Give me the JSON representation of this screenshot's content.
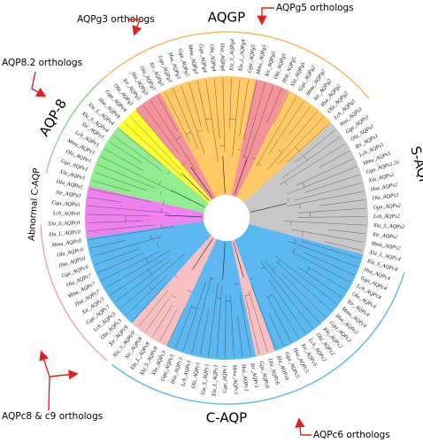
{
  "colors": {
    "aqgp": "#FFC966",
    "aqpg_orthologs": "#F4919A",
    "saqp": "#C8C8C8",
    "aqp8": "#90EE90",
    "yellow": "#FFFF33",
    "abnormal": "#EE82EE",
    "caqp": "#5CB8F0",
    "caqp_pink": "#F8C0C0",
    "ring_orange": "#F5B45A",
    "ring_blue": "#5CB8F0",
    "ring_green": "#8FD88F",
    "ring_pink": "#F0A0C8",
    "arrow": "#E02020"
  },
  "groups": [
    {
      "id": "aqgp",
      "label": "AQGP",
      "mid_angle": 0,
      "dist": 226
    },
    {
      "id": "saqp",
      "label": "S-AQP",
      "mid_angle": 75,
      "dist": 226
    },
    {
      "id": "caqp",
      "label": "C-AQP",
      "mid_angle": 180,
      "dist": 226
    },
    {
      "id": "abnormal",
      "label": "Abnormal C-AQP",
      "mid_angle": 274,
      "dist": 218
    },
    {
      "id": "aqp8",
      "label": "AQP-8",
      "mid_angle": 300,
      "dist": 226
    }
  ],
  "annotations": [
    {
      "id": "aqpg3",
      "text": "AQPg3 orthologs"
    },
    {
      "id": "aqpg5",
      "text": "AQPg5 orthologs"
    },
    {
      "id": "aqp82",
      "text": "AQP8.2 orthologs"
    },
    {
      "id": "aqpc89",
      "text": "AQPc8 & c9 orthologs"
    },
    {
      "id": "aqpc6",
      "text": "AQPc6 orthologs"
    }
  ],
  "tree_data": {
    "clades": [
      {
        "name": "AQGP",
        "color_key": "aqgp",
        "start": -55,
        "end": 48
      },
      {
        "name": "AQPg3 orthologs",
        "color_key": "aqpg_orthologs",
        "start": -42,
        "end": -28
      },
      {
        "name": "AQPg5 orthologs",
        "color_key": "aqpg_orthologs",
        "start": 12,
        "end": 26
      },
      {
        "name": "S-AQP",
        "color_key": "saqp",
        "start": 48,
        "end": 105
      },
      {
        "name": "C-AQP",
        "color_key": "caqp",
        "start": 105,
        "end": 262
      },
      {
        "name": "AQPc6 orthologs",
        "color_key": "caqp_pink",
        "start": 160,
        "end": 168
      },
      {
        "name": "AQPc8 & c9 orthologs",
        "color_key": "caqp_pink",
        "start": 205,
        "end": 222
      },
      {
        "name": "Abnormal C-AQP",
        "color_key": "abnormal",
        "start": 262,
        "end": 283
      },
      {
        "name": "AQP-8",
        "color_key": "aqp8",
        "start": 283,
        "end": 310
      },
      {
        "name": "",
        "color_key": "yellow",
        "start": 310,
        "end": 320
      }
    ],
    "leaves": [
      {
        "label": "Xla_S_AQPe4",
        "angle": 306
      },
      {
        "label": "Xla_L_AQPe4",
        "angle": 309.5
      },
      {
        "label": "Hsa_AQPe4",
        "angle": 313
      },
      {
        "label": "Gga_AQPe4",
        "angle": 316.5
      },
      {
        "label": "Ola_AQPg1",
        "angle": 320
      },
      {
        "label": "Xtr_AQPg3",
        "angle": 323.5
      },
      {
        "label": "Xla_AQPg3",
        "angle": 327
      },
      {
        "label": "Ola_AQPg3",
        "angle": 330.5
      },
      {
        "label": "Xtr_AQPg3",
        "angle": 334
      },
      {
        "label": "Gga_AQPg3",
        "angle": 337.5
      },
      {
        "label": "Hsa_AQPg3",
        "angle": 341
      },
      {
        "label": "Gga_AQPg3",
        "angle": 344.5
      },
      {
        "label": "Mmu_AQPg3",
        "angle": 348
      },
      {
        "label": "Gga_AQPg4",
        "angle": 351.5
      },
      {
        "label": "Ola_AQPg4",
        "angle": 355
      },
      {
        "label": "Hsa_AQPg4",
        "angle": 358.5
      },
      {
        "label": "Xla_S_AQPg4",
        "angle": 2
      },
      {
        "label": "Xla_L_AQPg4",
        "angle": 5.5
      },
      {
        "label": "Gga_AQPg5",
        "angle": 9
      },
      {
        "label": "Mmu_AQPg5",
        "angle": 12.5
      },
      {
        "label": "Xtr_AQPg5",
        "angle": 16
      },
      {
        "label": "Ola_AQPg5",
        "angle": 19.5
      },
      {
        "label": "Hsa_AQPg5",
        "angle": 23
      },
      {
        "label": "Xla_AQPg5",
        "angle": 26.5
      },
      {
        "label": "Gga_AQPg2",
        "angle": 30
      },
      {
        "label": "Mmu_AQPg2",
        "angle": 33.5
      },
      {
        "label": "Xtr_AQPg2",
        "angle": 37
      },
      {
        "label": "Hsa_AQPg2",
        "angle": 40.5
      },
      {
        "label": "Ola_AQPg2",
        "angle": 44
      },
      {
        "label": "Lch_AQPg1",
        "angle": 47.5
      },
      {
        "label": "Hsa_AQPs1",
        "angle": 51
      },
      {
        "label": "Gga_AQPs1",
        "angle": 54.5
      },
      {
        "label": "Ola_AQPs1",
        "angle": 58
      },
      {
        "label": "Xtr_AQPs1",
        "angle": 61.5
      },
      {
        "label": "Lch_AQPs1",
        "angle": 65
      },
      {
        "label": "Mmu_AQPs1",
        "angle": 68.5
      },
      {
        "label": "Gga_AQPs1.2a",
        "angle": 72
      },
      {
        "label": "Xla_AQPs2",
        "angle": 75.5
      },
      {
        "label": "Hsa_AQPs2",
        "angle": 79
      },
      {
        "label": "Ola_AQPs2",
        "angle": 82.5
      },
      {
        "label": "Gga_AQPs2",
        "angle": 86
      },
      {
        "label": "Lch_AQPs2",
        "angle": 89.5
      },
      {
        "label": "Xla_S_AQPs2",
        "angle": 93
      },
      {
        "label": "Xtr_AQPs2",
        "angle": 96.5
      },
      {
        "label": "Mmu_AQPs2",
        "angle": 100
      },
      {
        "label": "Xla_L_AQPc4",
        "angle": 103.5
      },
      {
        "label": "Xla_S_AQPc4",
        "angle": 107
      },
      {
        "label": "Hsa_AQPc4",
        "angle": 110.5
      },
      {
        "label": "Gga_AQPc4",
        "angle": 114
      },
      {
        "label": "Lch_AQPc4",
        "angle": 117.5
      },
      {
        "label": "Ola_AQPc4",
        "angle": 121
      },
      {
        "label": "Xtr_AQPc4",
        "angle": 124.5
      },
      {
        "label": "Mmu_AQPc4",
        "angle": 128
      },
      {
        "label": "Hsa_AQPc2",
        "angle": 131.5
      },
      {
        "label": "Gga_AQPc2",
        "angle": 135
      },
      {
        "label": "Xla_AQPc2",
        "angle": 138.5
      },
      {
        "label": "Ola_AQPc2",
        "angle": 142
      },
      {
        "label": "Lch_AQPc2",
        "angle": 145.5
      },
      {
        "label": "Xtr_AQPc5",
        "angle": 149
      },
      {
        "label": "Hsa_AQPc5",
        "angle": 152.5
      },
      {
        "label": "Gga_AQPc5",
        "angle": 156
      },
      {
        "label": "Xla_AQPc6",
        "angle": 159.5
      },
      {
        "label": "Ola_AQPc6",
        "angle": 163
      },
      {
        "label": "Gga_AQPc6",
        "angle": 166.5
      },
      {
        "label": "Xtr_AQPc1",
        "angle": 170
      },
      {
        "label": "Hsa_AQPc1",
        "angle": 173.5
      },
      {
        "label": "Mmu_AQPc1",
        "angle": 177
      },
      {
        "label": "Gga_AQPc1",
        "angle": 180.5
      },
      {
        "label": "Xla_L_AQPc1",
        "angle": 184
      },
      {
        "label": "Xla_S_AQPc1",
        "angle": 187.5
      },
      {
        "label": "Ola_AQPc1",
        "angle": 191
      },
      {
        "label": "Lch_AQPc1",
        "angle": 194.5
      },
      {
        "label": "Hsa_AQPc3",
        "angle": 198
      },
      {
        "label": "Gga_AQPc3",
        "angle": 201.5
      },
      {
        "label": "Xla_AQPc3",
        "angle": 205
      },
      {
        "label": "Xla_S_AQPc8",
        "angle": 208.5
      },
      {
        "label": "Xla_L_AQPc8",
        "angle": 212
      },
      {
        "label": "Xtr_AQPc8",
        "angle": 215.5
      },
      {
        "label": "Xla_S_AQPc9",
        "angle": 219
      },
      {
        "label": "Xtr_AQPc9",
        "angle": 222.5
      },
      {
        "label": "Ola_AQPc3",
        "angle": 226
      },
      {
        "label": "Lch_AQPc3",
        "angle": 229.5
      },
      {
        "label": "Gga_AQPc7",
        "angle": 233
      },
      {
        "label": "Xtr_AQPc7",
        "angle": 236.5
      },
      {
        "label": "Hsa_AQPc7",
        "angle": 240
      },
      {
        "label": "Mmu_AQPc7",
        "angle": 243.5
      },
      {
        "label": "Ola_AQPc7",
        "angle": 247
      },
      {
        "label": "Gga_AQPc0",
        "angle": 250.5
      },
      {
        "label": "Hsa_AQPc0",
        "angle": 254
      },
      {
        "label": "Ola_AQPc0",
        "angle": 257.5
      },
      {
        "label": "Mmu_AQPc0",
        "angle": 261
      },
      {
        "label": "Xla_L_AQPc0",
        "angle": 264.5
      },
      {
        "label": "Xla_S_AQPc0",
        "angle": 268
      },
      {
        "label": "Lch_AQPc0",
        "angle": 271.5
      },
      {
        "label": "Gga_AQPa1",
        "angle": 275
      },
      {
        "label": "Xtr_AQPa1",
        "angle": 278.5
      },
      {
        "label": "Ola_AQPa1",
        "angle": 282
      },
      {
        "label": "Xla_AQPe1",
        "angle": 285.5
      },
      {
        "label": "Gga_AQPe1",
        "angle": 289
      },
      {
        "label": "Ola_AQPe1",
        "angle": 292.5
      },
      {
        "label": "Mmu_AQPe1",
        "angle": 296
      },
      {
        "label": "Lch_AQPe1",
        "angle": 299.5
      },
      {
        "label": "Xtr_AQPe1",
        "angle": 303
      }
    ]
  }
}
